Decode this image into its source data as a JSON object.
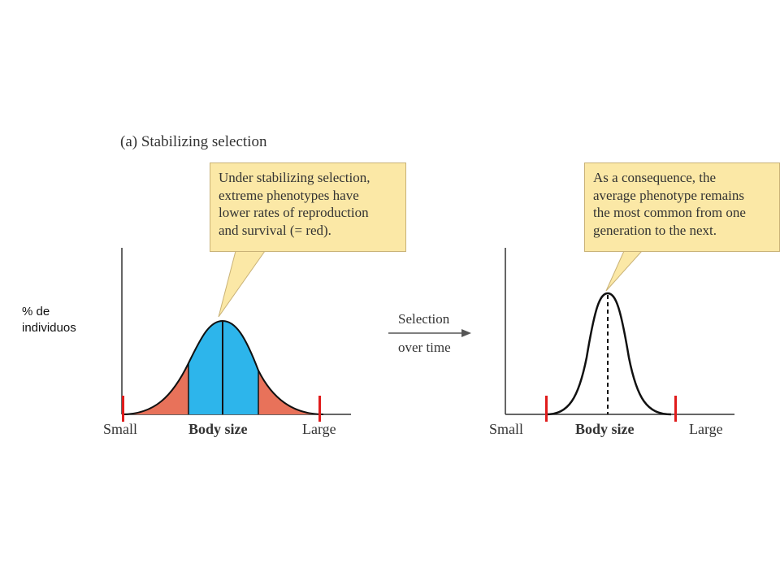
{
  "panel_title": "(a) Stabilizing selection",
  "y_axis_label": [
    "% de",
    "individuos"
  ],
  "callout_left": [
    "Under stabilizing selection,",
    "extreme phenotypes have",
    "lower rates of reproduction",
    "and survival (= red)."
  ],
  "callout_right": [
    "As a consequence, the",
    "average phenotype remains",
    "the most common from one",
    "generation to the next."
  ],
  "arrow": {
    "top": "Selection",
    "bottom": "over time"
  },
  "left_axis": {
    "min_label": "Small",
    "title": "Body size",
    "max_label": "Large"
  },
  "right_axis": {
    "min_label": "Small",
    "title": "Body size",
    "max_label": "Large"
  },
  "colors": {
    "selected_against": "#e8725a",
    "retained": "#2db5eb",
    "callout_fill": "#fbe8a6",
    "marker": "#e01b1b"
  }
}
